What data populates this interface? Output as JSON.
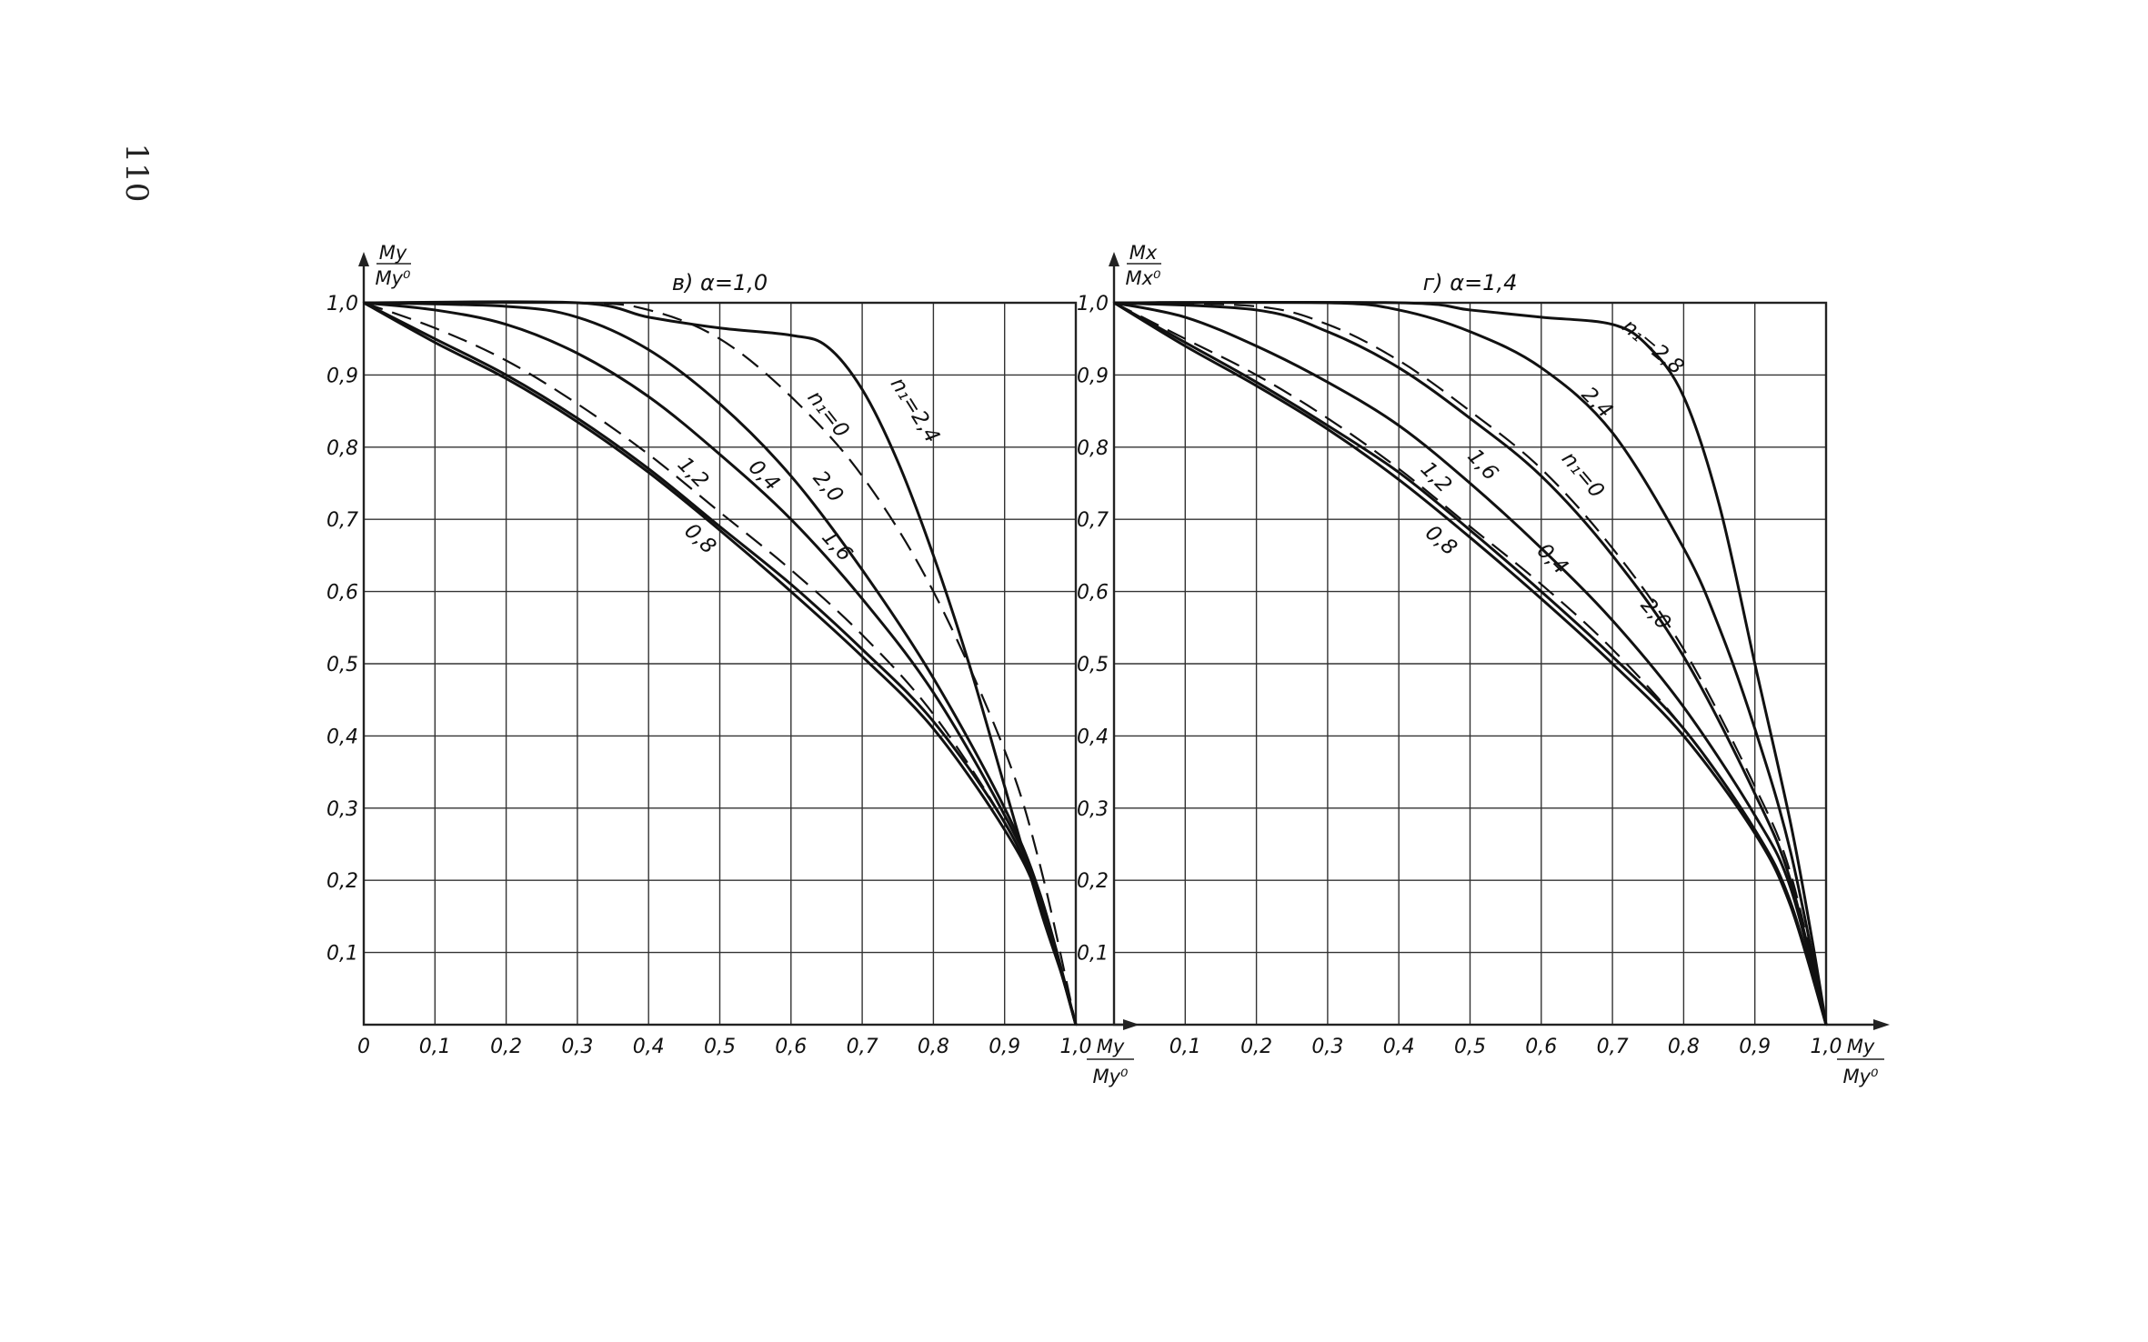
{
  "page_number": "110",
  "chart_data": [
    {
      "type": "line",
      "title": "в) α=1,0",
      "ylabel": {
        "num": "My",
        "den": "My⁰"
      },
      "xlabel": {
        "num": "My",
        "den": "My⁰"
      },
      "xlim": [
        0,
        1.0
      ],
      "ylim": [
        0,
        1.0
      ],
      "x_ticks": [
        "0",
        "0,1",
        "0,2",
        "0,3",
        "0,4",
        "0,5",
        "0,6",
        "0,7",
        "0,8",
        "0,9",
        "1,0"
      ],
      "y_ticks": [
        "0,1",
        "0,2",
        "0,3",
        "0,4",
        "0,5",
        "0,6",
        "0,7",
        "0,8",
        "0,9",
        "1,0"
      ],
      "grid": true,
      "series": [
        {
          "name": "n₁=2,4",
          "style": "solid",
          "points": [
            [
              0,
              1.0
            ],
            [
              0.3,
              1.0
            ],
            [
              0.4,
              0.98
            ],
            [
              0.5,
              0.965
            ],
            [
              0.6,
              0.955
            ],
            [
              0.65,
              0.94
            ],
            [
              0.7,
              0.88
            ],
            [
              0.75,
              0.78
            ],
            [
              0.8,
              0.65
            ],
            [
              0.85,
              0.5
            ],
            [
              0.9,
              0.33
            ],
            [
              0.95,
              0.16
            ],
            [
              0.98,
              0.07
            ],
            [
              1.0,
              0
            ]
          ]
        },
        {
          "name": "n₁=0",
          "style": "dashed",
          "points": [
            [
              0,
              1.0
            ],
            [
              0.3,
              1.0
            ],
            [
              0.4,
              0.99
            ],
            [
              0.5,
              0.95
            ],
            [
              0.6,
              0.87
            ],
            [
              0.7,
              0.76
            ],
            [
              0.8,
              0.6
            ],
            [
              0.9,
              0.38
            ],
            [
              0.95,
              0.22
            ],
            [
              1.0,
              0
            ]
          ]
        },
        {
          "name": "2,0",
          "style": "solid",
          "points": [
            [
              0,
              1.0
            ],
            [
              0.2,
              0.995
            ],
            [
              0.3,
              0.98
            ],
            [
              0.4,
              0.935
            ],
            [
              0.5,
              0.86
            ],
            [
              0.6,
              0.76
            ],
            [
              0.7,
              0.63
            ],
            [
              0.8,
              0.48
            ],
            [
              0.9,
              0.3
            ],
            [
              0.95,
              0.18
            ],
            [
              1.0,
              0
            ]
          ]
        },
        {
          "name": "1,6",
          "style": "solid",
          "points": [
            [
              0,
              1.0
            ],
            [
              0.1,
              0.99
            ],
            [
              0.2,
              0.97
            ],
            [
              0.3,
              0.93
            ],
            [
              0.4,
              0.87
            ],
            [
              0.5,
              0.79
            ],
            [
              0.6,
              0.7
            ],
            [
              0.7,
              0.59
            ],
            [
              0.8,
              0.46
            ],
            [
              0.9,
              0.29
            ],
            [
              0.95,
              0.18
            ],
            [
              1.0,
              0
            ]
          ]
        },
        {
          "name": "0,4",
          "style": "dashed",
          "points": [
            [
              0,
              1.0
            ],
            [
              0.1,
              0.965
            ],
            [
              0.2,
              0.92
            ],
            [
              0.3,
              0.86
            ],
            [
              0.4,
              0.79
            ],
            [
              0.5,
              0.71
            ],
            [
              0.6,
              0.63
            ],
            [
              0.7,
              0.54
            ],
            [
              0.8,
              0.43
            ],
            [
              0.9,
              0.28
            ],
            [
              0.95,
              0.17
            ],
            [
              1.0,
              0
            ]
          ]
        },
        {
          "name": "1,2",
          "style": "solid",
          "points": [
            [
              0,
              1.0
            ],
            [
              0.1,
              0.95
            ],
            [
              0.2,
              0.9
            ],
            [
              0.3,
              0.84
            ],
            [
              0.4,
              0.77
            ],
            [
              0.5,
              0.69
            ],
            [
              0.6,
              0.61
            ],
            [
              0.7,
              0.52
            ],
            [
              0.8,
              0.42
            ],
            [
              0.9,
              0.28
            ],
            [
              0.95,
              0.17
            ],
            [
              1.0,
              0
            ]
          ]
        },
        {
          "name": "0,8",
          "style": "solid",
          "points": [
            [
              0,
              1.0
            ],
            [
              0.1,
              0.945
            ],
            [
              0.2,
              0.895
            ],
            [
              0.3,
              0.835
            ],
            [
              0.4,
              0.765
            ],
            [
              0.5,
              0.685
            ],
            [
              0.6,
              0.6
            ],
            [
              0.7,
              0.51
            ],
            [
              0.8,
              0.41
            ],
            [
              0.9,
              0.27
            ],
            [
              0.95,
              0.17
            ],
            [
              1.0,
              0
            ]
          ]
        }
      ]
    },
    {
      "type": "line",
      "title": "г) α=1,4",
      "ylabel": {
        "num": "Mx",
        "den": "Mx⁰"
      },
      "xlabel": {
        "num": "My",
        "den": "My⁰"
      },
      "xlim": [
        0,
        1.0
      ],
      "ylim": [
        0,
        1.0
      ],
      "x_ticks": [
        "0,1",
        "0,2",
        "0,3",
        "0,4",
        "0,5",
        "0,6",
        "0,7",
        "0,8",
        "0,9",
        "1,0"
      ],
      "y_ticks": [
        "0,1",
        "0,2",
        "0,3",
        "0,4",
        "0,5",
        "0,6",
        "0,7",
        "0,8",
        "0,9",
        "1,0"
      ],
      "grid": true,
      "series": [
        {
          "name": "n₁=2,8",
          "style": "solid",
          "points": [
            [
              0,
              1.0
            ],
            [
              0.4,
              1.0
            ],
            [
              0.5,
              0.99
            ],
            [
              0.6,
              0.98
            ],
            [
              0.7,
              0.97
            ],
            [
              0.75,
              0.94
            ],
            [
              0.8,
              0.87
            ],
            [
              0.85,
              0.72
            ],
            [
              0.9,
              0.5
            ],
            [
              0.95,
              0.28
            ],
            [
              0.98,
              0.12
            ],
            [
              1.0,
              0
            ]
          ]
        },
        {
          "name": "2,4",
          "style": "solid",
          "points": [
            [
              0,
              1.0
            ],
            [
              0.3,
              1.0
            ],
            [
              0.4,
              0.99
            ],
            [
              0.5,
              0.96
            ],
            [
              0.6,
              0.91
            ],
            [
              0.7,
              0.82
            ],
            [
              0.8,
              0.66
            ],
            [
              0.85,
              0.55
            ],
            [
              0.9,
              0.41
            ],
            [
              0.95,
              0.24
            ],
            [
              1.0,
              0
            ]
          ]
        },
        {
          "name": "n₁=0",
          "style": "dashed",
          "points": [
            [
              0,
              1.0
            ],
            [
              0.2,
              0.995
            ],
            [
              0.3,
              0.97
            ],
            [
              0.4,
              0.92
            ],
            [
              0.5,
              0.85
            ],
            [
              0.6,
              0.77
            ],
            [
              0.7,
              0.66
            ],
            [
              0.8,
              0.52
            ],
            [
              0.9,
              0.33
            ],
            [
              0.95,
              0.21
            ],
            [
              1.0,
              0
            ]
          ]
        },
        {
          "name": "2,0",
          "style": "solid",
          "points": [
            [
              0,
              1.0
            ],
            [
              0.2,
              0.99
            ],
            [
              0.3,
              0.96
            ],
            [
              0.4,
              0.91
            ],
            [
              0.5,
              0.84
            ],
            [
              0.6,
              0.76
            ],
            [
              0.7,
              0.65
            ],
            [
              0.8,
              0.51
            ],
            [
              0.9,
              0.32
            ],
            [
              0.95,
              0.2
            ],
            [
              1.0,
              0
            ]
          ]
        },
        {
          "name": "1,6",
          "style": "solid",
          "points": [
            [
              0,
              1.0
            ],
            [
              0.1,
              0.98
            ],
            [
              0.2,
              0.94
            ],
            [
              0.3,
              0.89
            ],
            [
              0.4,
              0.83
            ],
            [
              0.5,
              0.75
            ],
            [
              0.6,
              0.66
            ],
            [
              0.7,
              0.56
            ],
            [
              0.8,
              0.44
            ],
            [
              0.9,
              0.29
            ],
            [
              0.95,
              0.19
            ],
            [
              1.0,
              0
            ]
          ]
        },
        {
          "name": "0,4",
          "style": "dashed",
          "points": [
            [
              0,
              1.0
            ],
            [
              0.1,
              0.95
            ],
            [
              0.2,
              0.9
            ],
            [
              0.3,
              0.84
            ],
            [
              0.4,
              0.77
            ],
            [
              0.5,
              0.69
            ],
            [
              0.6,
              0.61
            ],
            [
              0.7,
              0.52
            ],
            [
              0.8,
              0.41
            ],
            [
              0.9,
              0.27
            ],
            [
              0.95,
              0.17
            ],
            [
              1.0,
              0
            ]
          ]
        },
        {
          "name": "1,2",
          "style": "solid",
          "points": [
            [
              0,
              1.0
            ],
            [
              0.1,
              0.945
            ],
            [
              0.2,
              0.89
            ],
            [
              0.3,
              0.83
            ],
            [
              0.4,
              0.765
            ],
            [
              0.5,
              0.685
            ],
            [
              0.6,
              0.6
            ],
            [
              0.7,
              0.51
            ],
            [
              0.8,
              0.41
            ],
            [
              0.9,
              0.27
            ],
            [
              0.95,
              0.17
            ],
            [
              1.0,
              0
            ]
          ]
        },
        {
          "name": "0,8",
          "style": "solid",
          "points": [
            [
              0,
              1.0
            ],
            [
              0.1,
              0.94
            ],
            [
              0.2,
              0.885
            ],
            [
              0.3,
              0.825
            ],
            [
              0.4,
              0.755
            ],
            [
              0.5,
              0.675
            ],
            [
              0.6,
              0.59
            ],
            [
              0.7,
              0.5
            ],
            [
              0.8,
              0.4
            ],
            [
              0.9,
              0.265
            ],
            [
              0.95,
              0.165
            ],
            [
              1.0,
              0
            ]
          ]
        }
      ]
    }
  ]
}
